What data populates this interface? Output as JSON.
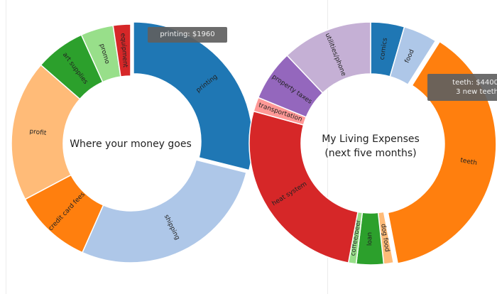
{
  "colors": {
    "tooltip_bg": "#5f5f5f",
    "tooltip_text": "#f2f2f2",
    "separator": "#ececec"
  },
  "chart_data": [
    {
      "type": "pie",
      "variant": "donut",
      "title": "Where your money goes",
      "start": "top",
      "direction": "clockwise",
      "highlighted_slice": "printing",
      "slices": [
        {
          "label": "printing",
          "value": 1960,
          "color": "#1f77b4"
        },
        {
          "label": "shipping",
          "value": 1880,
          "color": "#aec7e8"
        },
        {
          "label": "credit card fees",
          "value": 720,
          "color": "#ff7f0e"
        },
        {
          "label": "profit",
          "value": 1300,
          "color": "#ffbb78"
        },
        {
          "label": "art supplies",
          "value": 460,
          "color": "#2ca02c"
        },
        {
          "label": "promo",
          "value": 300,
          "color": "#98df8a"
        },
        {
          "label": "equipment",
          "value": 160,
          "color": "#d62728"
        }
      ]
    },
    {
      "type": "pie",
      "variant": "donut",
      "title": "My Living Expenses\n(next five months)",
      "start": "top",
      "direction": "clockwise",
      "highlighted_slice": "teeth",
      "slices": [
        {
          "label": "comics",
          "value": 520,
          "color": "#1f77b4"
        },
        {
          "label": "food",
          "value": 520,
          "color": "#aec7e8"
        },
        {
          "label": "teeth",
          "value": 4400,
          "color": "#ff7f0e"
        },
        {
          "label": "dog food",
          "value": 150,
          "color": "#ffbb78"
        },
        {
          "label": "loan",
          "value": 420,
          "color": "#2ca02c"
        },
        {
          "label": "coffee/beer",
          "value": 120,
          "color": "#98df8a"
        },
        {
          "label": "heat system",
          "value": 3050,
          "color": "#d62728"
        },
        {
          "label": "transportation",
          "value": 220,
          "color": "#ff9896"
        },
        {
          "label": "property taxes",
          "value": 780,
          "color": "#9467bd"
        },
        {
          "label": "utilities/phone",
          "value": 1400,
          "color": "#c5b0d5"
        }
      ]
    }
  ],
  "tooltips": {
    "left": {
      "text": "printing: $1960"
    },
    "right": {
      "line1": "teeth: $4400",
      "line2": "3 new teeth"
    }
  }
}
